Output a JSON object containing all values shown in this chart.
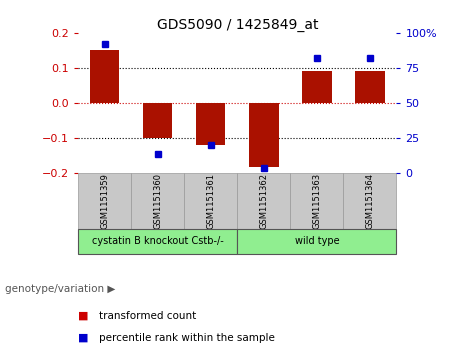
{
  "title": "GDS5090 / 1425849_at",
  "samples": [
    "GSM1151359",
    "GSM1151360",
    "GSM1151361",
    "GSM1151362",
    "GSM1151363",
    "GSM1151364"
  ],
  "bar_values": [
    0.15,
    -0.1,
    -0.12,
    -0.185,
    0.09,
    0.09
  ],
  "percentile_ranks": [
    92,
    13,
    20,
    3,
    82,
    82
  ],
  "ylim_left": [
    -0.2,
    0.2
  ],
  "ylim_right": [
    0,
    100
  ],
  "bar_color": "#aa1100",
  "dot_color": "#0000cc",
  "group_labels": [
    "cystatin B knockout Cstb-/-",
    "wild type"
  ],
  "group_colors": [
    "#90ee90",
    "#90ee90"
  ],
  "group_ranges": [
    [
      0,
      3
    ],
    [
      3,
      6
    ]
  ],
  "genotype_label": "genotype/variation",
  "legend_items": [
    "transformed count",
    "percentile rank within the sample"
  ],
  "legend_colors": [
    "#cc0000",
    "#0000cc"
  ],
  "background_color": "#ffffff",
  "tick_color_left": "#cc0000",
  "tick_color_right": "#0000cc",
  "yticks_left": [
    -0.2,
    -0.1,
    0,
    0.1,
    0.2
  ],
  "yticks_right": [
    0,
    25,
    50,
    75,
    100
  ],
  "zero_line_color": "#cc0000",
  "grid_color": "#000000",
  "bar_width": 0.55,
  "sample_box_color": "#c8c8c8",
  "sample_box_edge_color": "#999999"
}
